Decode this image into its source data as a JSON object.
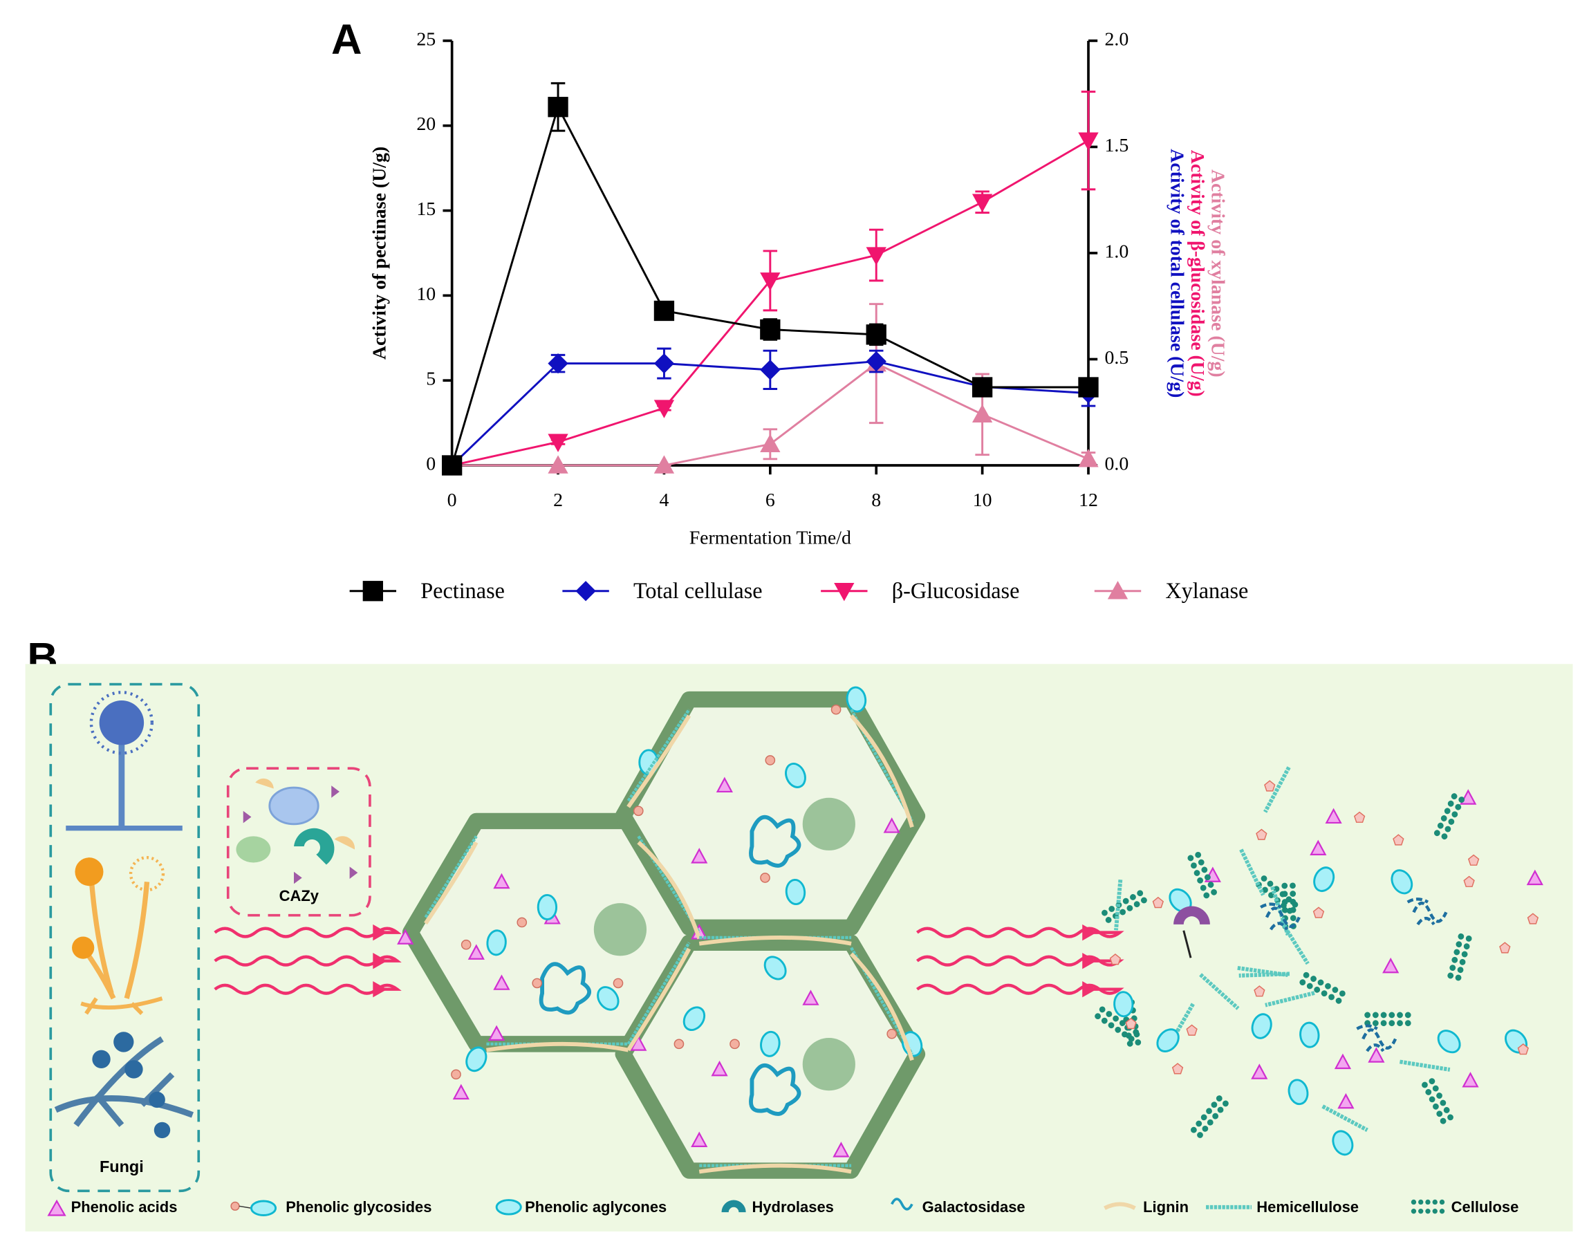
{
  "panel_labels": [
    "A",
    "B"
  ],
  "chart_data": {
    "type": "line",
    "xlabel": "Fermentation Time/d",
    "ylabel": "Activity of pectinase (U/g)",
    "y2labels": [
      "Activity of total cellulase (U/g)",
      "Activity of β-glucosidase (U/g)",
      "Activity of xylanase (U/g)"
    ],
    "x": [
      0,
      2,
      4,
      6,
      8,
      10,
      12
    ],
    "xlim": [
      0,
      12
    ],
    "xticks": [
      0,
      2,
      4,
      6,
      8,
      10,
      12
    ],
    "ylim": [
      0,
      25
    ],
    "yticks": [
      0,
      5,
      10,
      15,
      20,
      25
    ],
    "y2lim": [
      0,
      2
    ],
    "y2ticks": [
      {
        "value": 0,
        "label": "0.0"
      },
      {
        "value": 0.5,
        "label": "0.5"
      },
      {
        "value": 1,
        "label": "1.0"
      },
      {
        "value": 1.5,
        "label": "1.5"
      },
      {
        "value": 2,
        "label": "2.0"
      }
    ],
    "legend": "bottom",
    "series": [
      {
        "name": "Pectinase",
        "color": "#000000",
        "marker": "square",
        "axis": "y",
        "values": [
          0,
          21.1,
          9.1,
          8.0,
          7.7,
          4.6,
          4.6
        ],
        "errors": [
          0,
          1.4,
          0.3,
          0.6,
          0.6,
          0.3,
          0.3
        ]
      },
      {
        "name": "Total cellulase",
        "color": "#1010c0",
        "marker": "diamond",
        "axis": "y2",
        "values": [
          0,
          0.48,
          0.48,
          0.45,
          0.49,
          0.37,
          0.34
        ],
        "errors": [
          0,
          0.04,
          0.07,
          0.09,
          0.05,
          0.02,
          0.06
        ]
      },
      {
        "name": "β-Glucosidase",
        "color": "#f0156e",
        "marker": "triangle-down",
        "axis": "y2",
        "values": [
          0,
          0.11,
          0.27,
          0.87,
          0.99,
          1.24,
          1.53
        ],
        "errors": [
          0,
          0.01,
          0.01,
          0.14,
          0.12,
          0.05,
          0.23
        ]
      },
      {
        "name": "Xylanase",
        "color": "#e07fa0",
        "marker": "triangle-up",
        "axis": "y2",
        "values": [
          0,
          0,
          0,
          0.1,
          0.48,
          0.24,
          0.03
        ],
        "errors": [
          0,
          0,
          0,
          0.07,
          0.28,
          0.19,
          0.03
        ]
      }
    ]
  },
  "diagram": {
    "enzyme_box": "CAZy",
    "fungi_box": "Fungi",
    "legend": [
      "Phenolic acids",
      "Phenolic glycosides",
      "Phenolic aglycones",
      "Hydrolases",
      "Galactosidase",
      "Lignin",
      "Hemicellulose",
      "Cellulose"
    ]
  }
}
